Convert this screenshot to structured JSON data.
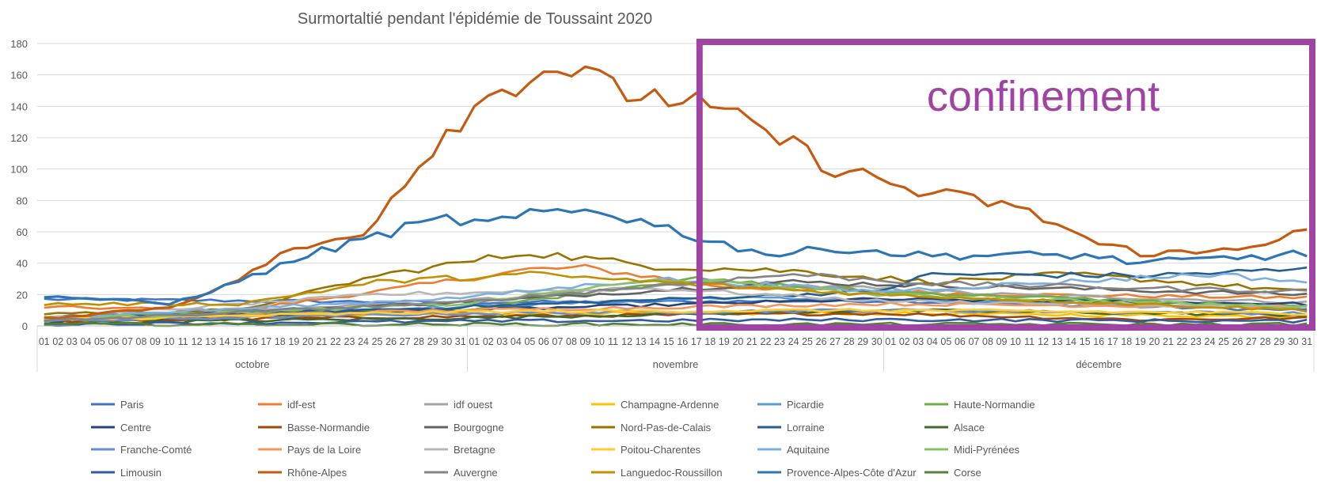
{
  "chart_data": {
    "type": "line",
    "title": "Surmortaltié pendant l'épidémie de Toussaint 2020",
    "xlabel": "",
    "ylabel": "",
    "ylim": [
      0,
      180
    ],
    "yticks": [
      0,
      20,
      40,
      60,
      80,
      100,
      120,
      140,
      160,
      180
    ],
    "grid": true,
    "legend_position": "bottom",
    "months": [
      {
        "name": "octobre",
        "days": 31
      },
      {
        "name": "novembre",
        "days": 30
      },
      {
        "name": "décembre",
        "days": 31
      }
    ],
    "annotation": {
      "text": "confinement",
      "x_start_day_of_period": 48,
      "color": "#a044a4"
    },
    "series": [
      {
        "name": "Paris",
        "color": "#4472c4",
        "keypoints": [
          [
            1,
            17
          ],
          [
            31,
            15
          ],
          [
            61,
            16
          ],
          [
            92,
            10
          ]
        ]
      },
      {
        "name": "idf-est",
        "color": "#ed7d31",
        "keypoints": [
          [
            1,
            12
          ],
          [
            15,
            10
          ],
          [
            25,
            22
          ],
          [
            36,
            36
          ],
          [
            40,
            37
          ],
          [
            50,
            25
          ],
          [
            70,
            20
          ],
          [
            92,
            18
          ]
        ]
      },
      {
        "name": "idf ouest",
        "color": "#a5a5a5",
        "keypoints": [
          [
            1,
            5
          ],
          [
            30,
            15
          ],
          [
            50,
            28
          ],
          [
            70,
            20
          ],
          [
            92,
            15
          ]
        ]
      },
      {
        "name": "Champagne-Ardenne",
        "color": "#ffc000",
        "keypoints": [
          [
            1,
            3
          ],
          [
            31,
            8
          ],
          [
            61,
            8
          ],
          [
            92,
            6
          ]
        ]
      },
      {
        "name": "Picardie",
        "color": "#5b9bd5",
        "keypoints": [
          [
            1,
            6
          ],
          [
            31,
            12
          ],
          [
            50,
            18
          ],
          [
            92,
            12
          ]
        ]
      },
      {
        "name": "Haute-Normandie",
        "color": "#70ad47",
        "keypoints": [
          [
            1,
            6
          ],
          [
            31,
            10
          ],
          [
            47,
            30
          ],
          [
            61,
            22
          ],
          [
            92,
            12
          ]
        ]
      },
      {
        "name": "Centre",
        "color": "#264478",
        "keypoints": [
          [
            1,
            3
          ],
          [
            31,
            10
          ],
          [
            61,
            17
          ],
          [
            92,
            14
          ]
        ]
      },
      {
        "name": "Basse-Normandie",
        "color": "#9e480e",
        "keypoints": [
          [
            1,
            3
          ],
          [
            31,
            6
          ],
          [
            61,
            8
          ],
          [
            80,
            4
          ],
          [
            92,
            5
          ]
        ]
      },
      {
        "name": "Bourgogne",
        "color": "#636363",
        "keypoints": [
          [
            1,
            4
          ],
          [
            31,
            15
          ],
          [
            55,
            28
          ],
          [
            92,
            20
          ]
        ]
      },
      {
        "name": "Nord-Pas-de-Calais",
        "color": "#997300",
        "keypoints": [
          [
            1,
            8
          ],
          [
            15,
            10
          ],
          [
            25,
            32
          ],
          [
            36,
            47
          ],
          [
            45,
            38
          ],
          [
            55,
            35
          ],
          [
            65,
            28
          ],
          [
            75,
            33
          ],
          [
            92,
            22
          ]
        ]
      },
      {
        "name": "Lorraine",
        "color": "#255e91",
        "keypoints": [
          [
            1,
            4
          ],
          [
            31,
            12
          ],
          [
            61,
            22
          ],
          [
            65,
            33
          ],
          [
            80,
            32
          ],
          [
            92,
            36
          ]
        ]
      },
      {
        "name": "Alsace",
        "color": "#43682b",
        "keypoints": [
          [
            1,
            2
          ],
          [
            31,
            5
          ],
          [
            61,
            10
          ],
          [
            92,
            7
          ]
        ]
      },
      {
        "name": "Franche-Comté",
        "color": "#698ed0",
        "keypoints": [
          [
            1,
            3
          ],
          [
            31,
            8
          ],
          [
            61,
            10
          ],
          [
            92,
            8
          ]
        ]
      },
      {
        "name": "Pays de la Loire",
        "color": "#f1975a",
        "keypoints": [
          [
            1,
            4
          ],
          [
            31,
            10
          ],
          [
            61,
            14
          ],
          [
            92,
            12
          ]
        ]
      },
      {
        "name": "Bretagne",
        "color": "#b7b7b7",
        "keypoints": [
          [
            1,
            5
          ],
          [
            25,
            20
          ],
          [
            45,
            24
          ],
          [
            61,
            16
          ],
          [
            92,
            12
          ]
        ]
      },
      {
        "name": "Poitou-Charentes",
        "color": "#ffcd33",
        "keypoints": [
          [
            1,
            4
          ],
          [
            31,
            9
          ],
          [
            61,
            10
          ],
          [
            92,
            8
          ]
        ]
      },
      {
        "name": "Aquitaine",
        "color": "#7cafdd",
        "keypoints": [
          [
            1,
            5
          ],
          [
            31,
            18
          ],
          [
            45,
            30
          ],
          [
            61,
            22
          ],
          [
            85,
            33
          ],
          [
            92,
            28
          ]
        ]
      },
      {
        "name": "Midi-Pyrénées",
        "color": "#8cc168",
        "keypoints": [
          [
            1,
            4
          ],
          [
            31,
            14
          ],
          [
            46,
            30
          ],
          [
            61,
            20
          ],
          [
            92,
            12
          ]
        ]
      },
      {
        "name": "Limousin",
        "color": "#335aa1",
        "keypoints": [
          [
            1,
            1
          ],
          [
            31,
            3
          ],
          [
            61,
            4
          ],
          [
            92,
            3
          ]
        ]
      },
      {
        "name": "Rhône-Alpes",
        "color": "#c55a11",
        "keypoints": [
          [
            1,
            5
          ],
          [
            10,
            12
          ],
          [
            14,
            25
          ],
          [
            18,
            45
          ],
          [
            24,
            60
          ],
          [
            27,
            92
          ],
          [
            30,
            125
          ],
          [
            34,
            152
          ],
          [
            38,
            166
          ],
          [
            40,
            160
          ],
          [
            42,
            150
          ],
          [
            47,
            144
          ],
          [
            50,
            135
          ],
          [
            55,
            115
          ],
          [
            58,
            100
          ],
          [
            61,
            94
          ],
          [
            64,
            85
          ],
          [
            70,
            78
          ],
          [
            74,
            65
          ],
          [
            77,
            52
          ],
          [
            80,
            47
          ],
          [
            84,
            46
          ],
          [
            88,
            52
          ],
          [
            92,
            60
          ]
        ]
      },
      {
        "name": "Auvergne",
        "color": "#848484",
        "keypoints": [
          [
            1,
            3
          ],
          [
            31,
            15
          ],
          [
            55,
            33
          ],
          [
            65,
            27
          ],
          [
            92,
            22
          ]
        ]
      },
      {
        "name": "Languedoc-Roussillon",
        "color": "#bf9000",
        "keypoints": [
          [
            1,
            14
          ],
          [
            15,
            14
          ],
          [
            25,
            28
          ],
          [
            36,
            33
          ],
          [
            45,
            28
          ],
          [
            61,
            20
          ],
          [
            92,
            10
          ]
        ]
      },
      {
        "name": "Provence-Alpes-Côte d'Azur",
        "color": "#2e75b6",
        "keypoints": [
          [
            1,
            19
          ],
          [
            7,
            16
          ],
          [
            10,
            14
          ],
          [
            14,
            25
          ],
          [
            20,
            45
          ],
          [
            26,
            60
          ],
          [
            30,
            68
          ],
          [
            33,
            65
          ],
          [
            37,
            72
          ],
          [
            41,
            74
          ],
          [
            46,
            62
          ],
          [
            50,
            52
          ],
          [
            54,
            45
          ],
          [
            58,
            50
          ],
          [
            64,
            45
          ],
          [
            70,
            45
          ],
          [
            76,
            45
          ],
          [
            80,
            40
          ],
          [
            88,
            44
          ],
          [
            92,
            46
          ]
        ]
      },
      {
        "name": "Corse",
        "color": "#548235",
        "keypoints": [
          [
            1,
            1
          ],
          [
            31,
            1
          ],
          [
            61,
            1
          ],
          [
            92,
            1
          ]
        ]
      }
    ]
  }
}
